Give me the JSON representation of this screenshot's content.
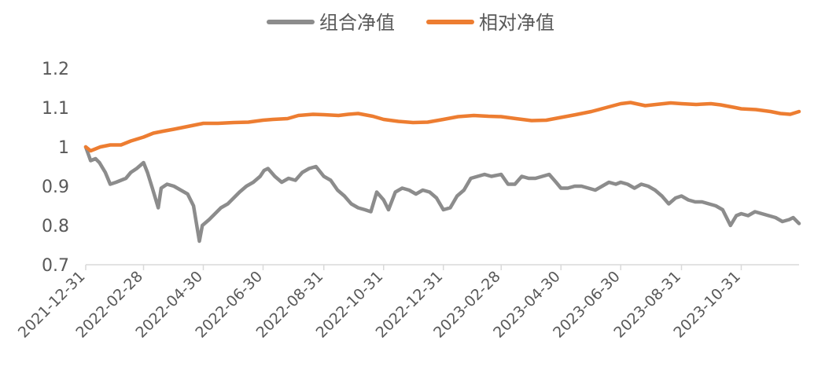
{
  "chart_data": {
    "type": "line",
    "title": "",
    "xlabel": "",
    "ylabel": "",
    "ylim": [
      0.7,
      1.2
    ],
    "y_ticks": [
      0.7,
      0.8,
      0.9,
      1,
      1.1,
      1.2
    ],
    "y_tick_labels": [
      "0.7",
      "0.8",
      "0.9",
      "1",
      "1.1",
      "1.2"
    ],
    "x_ticks": [
      "2021-12-31",
      "2022-02-28",
      "2022-04-30",
      "2022-06-30",
      "2022-08-31",
      "2022-10-31",
      "2022-12-31",
      "2023-02-28",
      "2023-04-30",
      "2023-06-30",
      "2023-08-31",
      "2023-10-31"
    ],
    "x_range": [
      "2021-12-31",
      "2023-12-29"
    ],
    "grid": false,
    "legend_position": "top-center",
    "series": [
      {
        "name": "组合净值",
        "color": "#8c8c8c",
        "points": [
          [
            "2021-12-31",
            1.0
          ],
          [
            "2022-01-05",
            0.965
          ],
          [
            "2022-01-10",
            0.97
          ],
          [
            "2022-01-14",
            0.96
          ],
          [
            "2022-01-20",
            0.935
          ],
          [
            "2022-01-25",
            0.905
          ],
          [
            "2022-01-31",
            0.91
          ],
          [
            "2022-02-10",
            0.92
          ],
          [
            "2022-02-15",
            0.935
          ],
          [
            "2022-02-21",
            0.945
          ],
          [
            "2022-02-28",
            0.96
          ],
          [
            "2022-03-04",
            0.935
          ],
          [
            "2022-03-09",
            0.895
          ],
          [
            "2022-03-15",
            0.845
          ],
          [
            "2022-03-18",
            0.895
          ],
          [
            "2022-03-24",
            0.905
          ],
          [
            "2022-03-31",
            0.9
          ],
          [
            "2022-04-07",
            0.89
          ],
          [
            "2022-04-14",
            0.88
          ],
          [
            "2022-04-20",
            0.85
          ],
          [
            "2022-04-26",
            0.76
          ],
          [
            "2022-04-29",
            0.8
          ],
          [
            "2022-05-06",
            0.815
          ],
          [
            "2022-05-12",
            0.83
          ],
          [
            "2022-05-18",
            0.845
          ],
          [
            "2022-05-25",
            0.855
          ],
          [
            "2022-05-31",
            0.87
          ],
          [
            "2022-06-06",
            0.885
          ],
          [
            "2022-06-13",
            0.9
          ],
          [
            "2022-06-20",
            0.91
          ],
          [
            "2022-06-27",
            0.925
          ],
          [
            "2022-07-01",
            0.94
          ],
          [
            "2022-07-05",
            0.945
          ],
          [
            "2022-07-12",
            0.925
          ],
          [
            "2022-07-19",
            0.91
          ],
          [
            "2022-07-26",
            0.92
          ],
          [
            "2022-08-02",
            0.915
          ],
          [
            "2022-08-09",
            0.935
          ],
          [
            "2022-08-16",
            0.945
          ],
          [
            "2022-08-23",
            0.95
          ],
          [
            "2022-08-31",
            0.925
          ],
          [
            "2022-09-07",
            0.915
          ],
          [
            "2022-09-14",
            0.89
          ],
          [
            "2022-09-21",
            0.875
          ],
          [
            "2022-09-28",
            0.855
          ],
          [
            "2022-10-05",
            0.845
          ],
          [
            "2022-10-12",
            0.84
          ],
          [
            "2022-10-18",
            0.835
          ],
          [
            "2022-10-24",
            0.885
          ],
          [
            "2022-10-31",
            0.865
          ],
          [
            "2022-11-05",
            0.84
          ],
          [
            "2022-11-12",
            0.885
          ],
          [
            "2022-11-19",
            0.895
          ],
          [
            "2022-11-26",
            0.89
          ],
          [
            "2022-12-03",
            0.88
          ],
          [
            "2022-12-10",
            0.89
          ],
          [
            "2022-12-17",
            0.885
          ],
          [
            "2022-12-24",
            0.87
          ],
          [
            "2022-12-31",
            0.84
          ],
          [
            "2023-01-07",
            0.845
          ],
          [
            "2023-01-14",
            0.875
          ],
          [
            "2023-01-21",
            0.89
          ],
          [
            "2023-01-28",
            0.92
          ],
          [
            "2023-02-04",
            0.925
          ],
          [
            "2023-02-11",
            0.93
          ],
          [
            "2023-02-18",
            0.925
          ],
          [
            "2023-02-28",
            0.93
          ],
          [
            "2023-03-07",
            0.905
          ],
          [
            "2023-03-14",
            0.905
          ],
          [
            "2023-03-21",
            0.925
          ],
          [
            "2023-03-28",
            0.92
          ],
          [
            "2023-04-04",
            0.92
          ],
          [
            "2023-04-11",
            0.925
          ],
          [
            "2023-04-18",
            0.93
          ],
          [
            "2023-04-25",
            0.91
          ],
          [
            "2023-04-30",
            0.895
          ],
          [
            "2023-05-07",
            0.895
          ],
          [
            "2023-05-14",
            0.9
          ],
          [
            "2023-05-21",
            0.9
          ],
          [
            "2023-05-28",
            0.895
          ],
          [
            "2023-06-04",
            0.89
          ],
          [
            "2023-06-11",
            0.9
          ],
          [
            "2023-06-18",
            0.91
          ],
          [
            "2023-06-25",
            0.905
          ],
          [
            "2023-06-30",
            0.91
          ],
          [
            "2023-07-07",
            0.905
          ],
          [
            "2023-07-14",
            0.895
          ],
          [
            "2023-07-21",
            0.905
          ],
          [
            "2023-07-28",
            0.9
          ],
          [
            "2023-08-04",
            0.89
          ],
          [
            "2023-08-11",
            0.875
          ],
          [
            "2023-08-18",
            0.855
          ],
          [
            "2023-08-25",
            0.87
          ],
          [
            "2023-08-31",
            0.875
          ],
          [
            "2023-09-07",
            0.865
          ],
          [
            "2023-09-14",
            0.86
          ],
          [
            "2023-09-21",
            0.86
          ],
          [
            "2023-09-28",
            0.855
          ],
          [
            "2023-10-05",
            0.85
          ],
          [
            "2023-10-12",
            0.84
          ],
          [
            "2023-10-20",
            0.8
          ],
          [
            "2023-10-26",
            0.825
          ],
          [
            "2023-10-31",
            0.83
          ],
          [
            "2023-11-07",
            0.825
          ],
          [
            "2023-11-14",
            0.835
          ],
          [
            "2023-11-21",
            0.83
          ],
          [
            "2023-11-28",
            0.825
          ],
          [
            "2023-12-05",
            0.82
          ],
          [
            "2023-12-12",
            0.81
          ],
          [
            "2023-12-19",
            0.815
          ],
          [
            "2023-12-23",
            0.82
          ],
          [
            "2023-12-29",
            0.805
          ]
        ]
      },
      {
        "name": "相对净值",
        "color": "#ed7d31",
        "points": [
          [
            "2021-12-31",
            1.0
          ],
          [
            "2022-01-05",
            0.99
          ],
          [
            "2022-01-10",
            0.995
          ],
          [
            "2022-01-15",
            1.0
          ],
          [
            "2022-01-25",
            1.005
          ],
          [
            "2022-02-05",
            1.005
          ],
          [
            "2022-02-15",
            1.015
          ],
          [
            "2022-02-28",
            1.025
          ],
          [
            "2022-03-10",
            1.035
          ],
          [
            "2022-03-20",
            1.04
          ],
          [
            "2022-03-31",
            1.045
          ],
          [
            "2022-04-10",
            1.05
          ],
          [
            "2022-04-20",
            1.055
          ],
          [
            "2022-04-30",
            1.06
          ],
          [
            "2022-05-15",
            1.06
          ],
          [
            "2022-05-31",
            1.062
          ],
          [
            "2022-06-15",
            1.063
          ],
          [
            "2022-06-30",
            1.068
          ],
          [
            "2022-07-10",
            1.07
          ],
          [
            "2022-07-25",
            1.072
          ],
          [
            "2022-08-05",
            1.08
          ],
          [
            "2022-08-20",
            1.083
          ],
          [
            "2022-08-31",
            1.082
          ],
          [
            "2022-09-15",
            1.08
          ],
          [
            "2022-09-25",
            1.083
          ],
          [
            "2022-10-05",
            1.085
          ],
          [
            "2022-10-20",
            1.078
          ],
          [
            "2022-10-31",
            1.07
          ],
          [
            "2022-11-15",
            1.065
          ],
          [
            "2022-11-30",
            1.062
          ],
          [
            "2022-12-15",
            1.063
          ],
          [
            "2022-12-31",
            1.07
          ],
          [
            "2023-01-15",
            1.077
          ],
          [
            "2023-01-31",
            1.08
          ],
          [
            "2023-02-15",
            1.078
          ],
          [
            "2023-02-28",
            1.077
          ],
          [
            "2023-03-15",
            1.072
          ],
          [
            "2023-03-31",
            1.067
          ],
          [
            "2023-04-15",
            1.068
          ],
          [
            "2023-04-30",
            1.075
          ],
          [
            "2023-05-15",
            1.082
          ],
          [
            "2023-05-31",
            1.09
          ],
          [
            "2023-06-15",
            1.1
          ],
          [
            "2023-06-30",
            1.11
          ],
          [
            "2023-07-10",
            1.113
          ],
          [
            "2023-07-25",
            1.105
          ],
          [
            "2023-08-05",
            1.108
          ],
          [
            "2023-08-20",
            1.112
          ],
          [
            "2023-08-31",
            1.11
          ],
          [
            "2023-09-15",
            1.108
          ],
          [
            "2023-09-30",
            1.11
          ],
          [
            "2023-10-10",
            1.107
          ],
          [
            "2023-10-25",
            1.1
          ],
          [
            "2023-10-31",
            1.097
          ],
          [
            "2023-11-15",
            1.095
          ],
          [
            "2023-11-30",
            1.09
          ],
          [
            "2023-12-10",
            1.085
          ],
          [
            "2023-12-20",
            1.083
          ],
          [
            "2023-12-29",
            1.09
          ]
        ]
      }
    ]
  }
}
